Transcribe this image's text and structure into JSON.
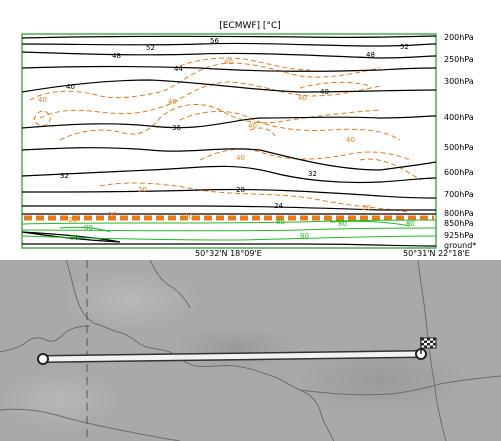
{
  "cross_section": {
    "title": "[ECMWF] [°C]",
    "pressure_levels": [
      "200hPa",
      "250hPa",
      "300hPa",
      "400hPa",
      "500hPa",
      "600hPa",
      "700hPa",
      "800hPa",
      "850hPa",
      "925hPa",
      "ground*"
    ],
    "start_coordinate": "50°32'N 18°09'E",
    "end_coordinate": "50°31'N 22°18'E",
    "contour_labels_black": [
      "56",
      "52",
      "48",
      "52",
      "48",
      "44",
      "40",
      "40",
      "36",
      "32",
      "32",
      "28",
      "24"
    ],
    "contour_labels_orange": [
      "40",
      "40",
      "40",
      "40",
      "40",
      "40",
      "40",
      "20",
      "20",
      "20",
      "20",
      "20"
    ],
    "contour_labels_green": [
      "80",
      "80",
      "80",
      "80",
      "80",
      "80"
    ],
    "colors": {
      "temperature": "#000000",
      "humidity": "#e87a1e",
      "wind": "#22bb22",
      "frame": "#4caf50"
    }
  },
  "map": {
    "route_start_marker": "circle",
    "route_end_marker": "checkered-flag-icon"
  }
}
